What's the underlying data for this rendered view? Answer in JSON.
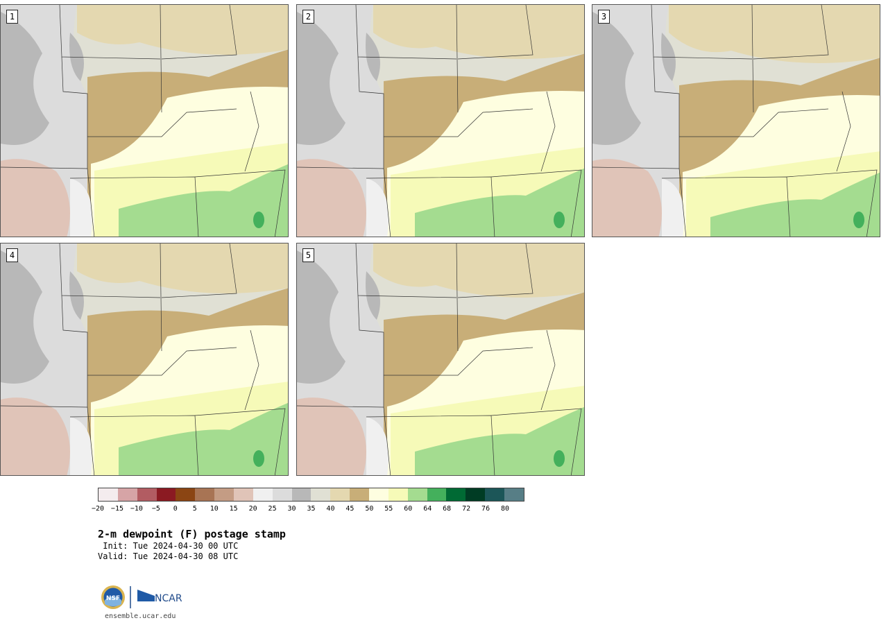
{
  "panels": [
    {
      "label": "1"
    },
    {
      "label": "2"
    },
    {
      "label": "3"
    },
    {
      "label": "4"
    },
    {
      "label": "5"
    }
  ],
  "colorbar": {
    "colors": [
      "#f4ecee",
      "#d6a4a6",
      "#b25c62",
      "#8b1a22",
      "#8b4513",
      "#a87454",
      "#c49c84",
      "#e0c4b8",
      "#f0f0f0",
      "#dcdcdc",
      "#b8b8b8",
      "#e0e0d4",
      "#e4d8b0",
      "#c8ae78",
      "#fefee0",
      "#f6fab8",
      "#a4dc90",
      "#44b05c",
      "#006a34",
      "#003c24",
      "#1c5658",
      "#577e86"
    ],
    "tick_labels": [
      "−20",
      "−15",
      "−10",
      "−5",
      "0",
      "5",
      "10",
      "15",
      "20",
      "25",
      "30",
      "35",
      "40",
      "45",
      "50",
      "55",
      "60",
      "64",
      "68",
      "72",
      "76",
      "80"
    ]
  },
  "title": "2-m dewpoint (F) postage stamp",
  "init": " Init: Tue 2024-04-30 00 UTC",
  "valid": "Valid: Tue 2024-04-30 08 UTC",
  "logos": {
    "nsf": "NSF",
    "ncar": "NCAR"
  },
  "site": "ensemble.ucar.edu"
}
